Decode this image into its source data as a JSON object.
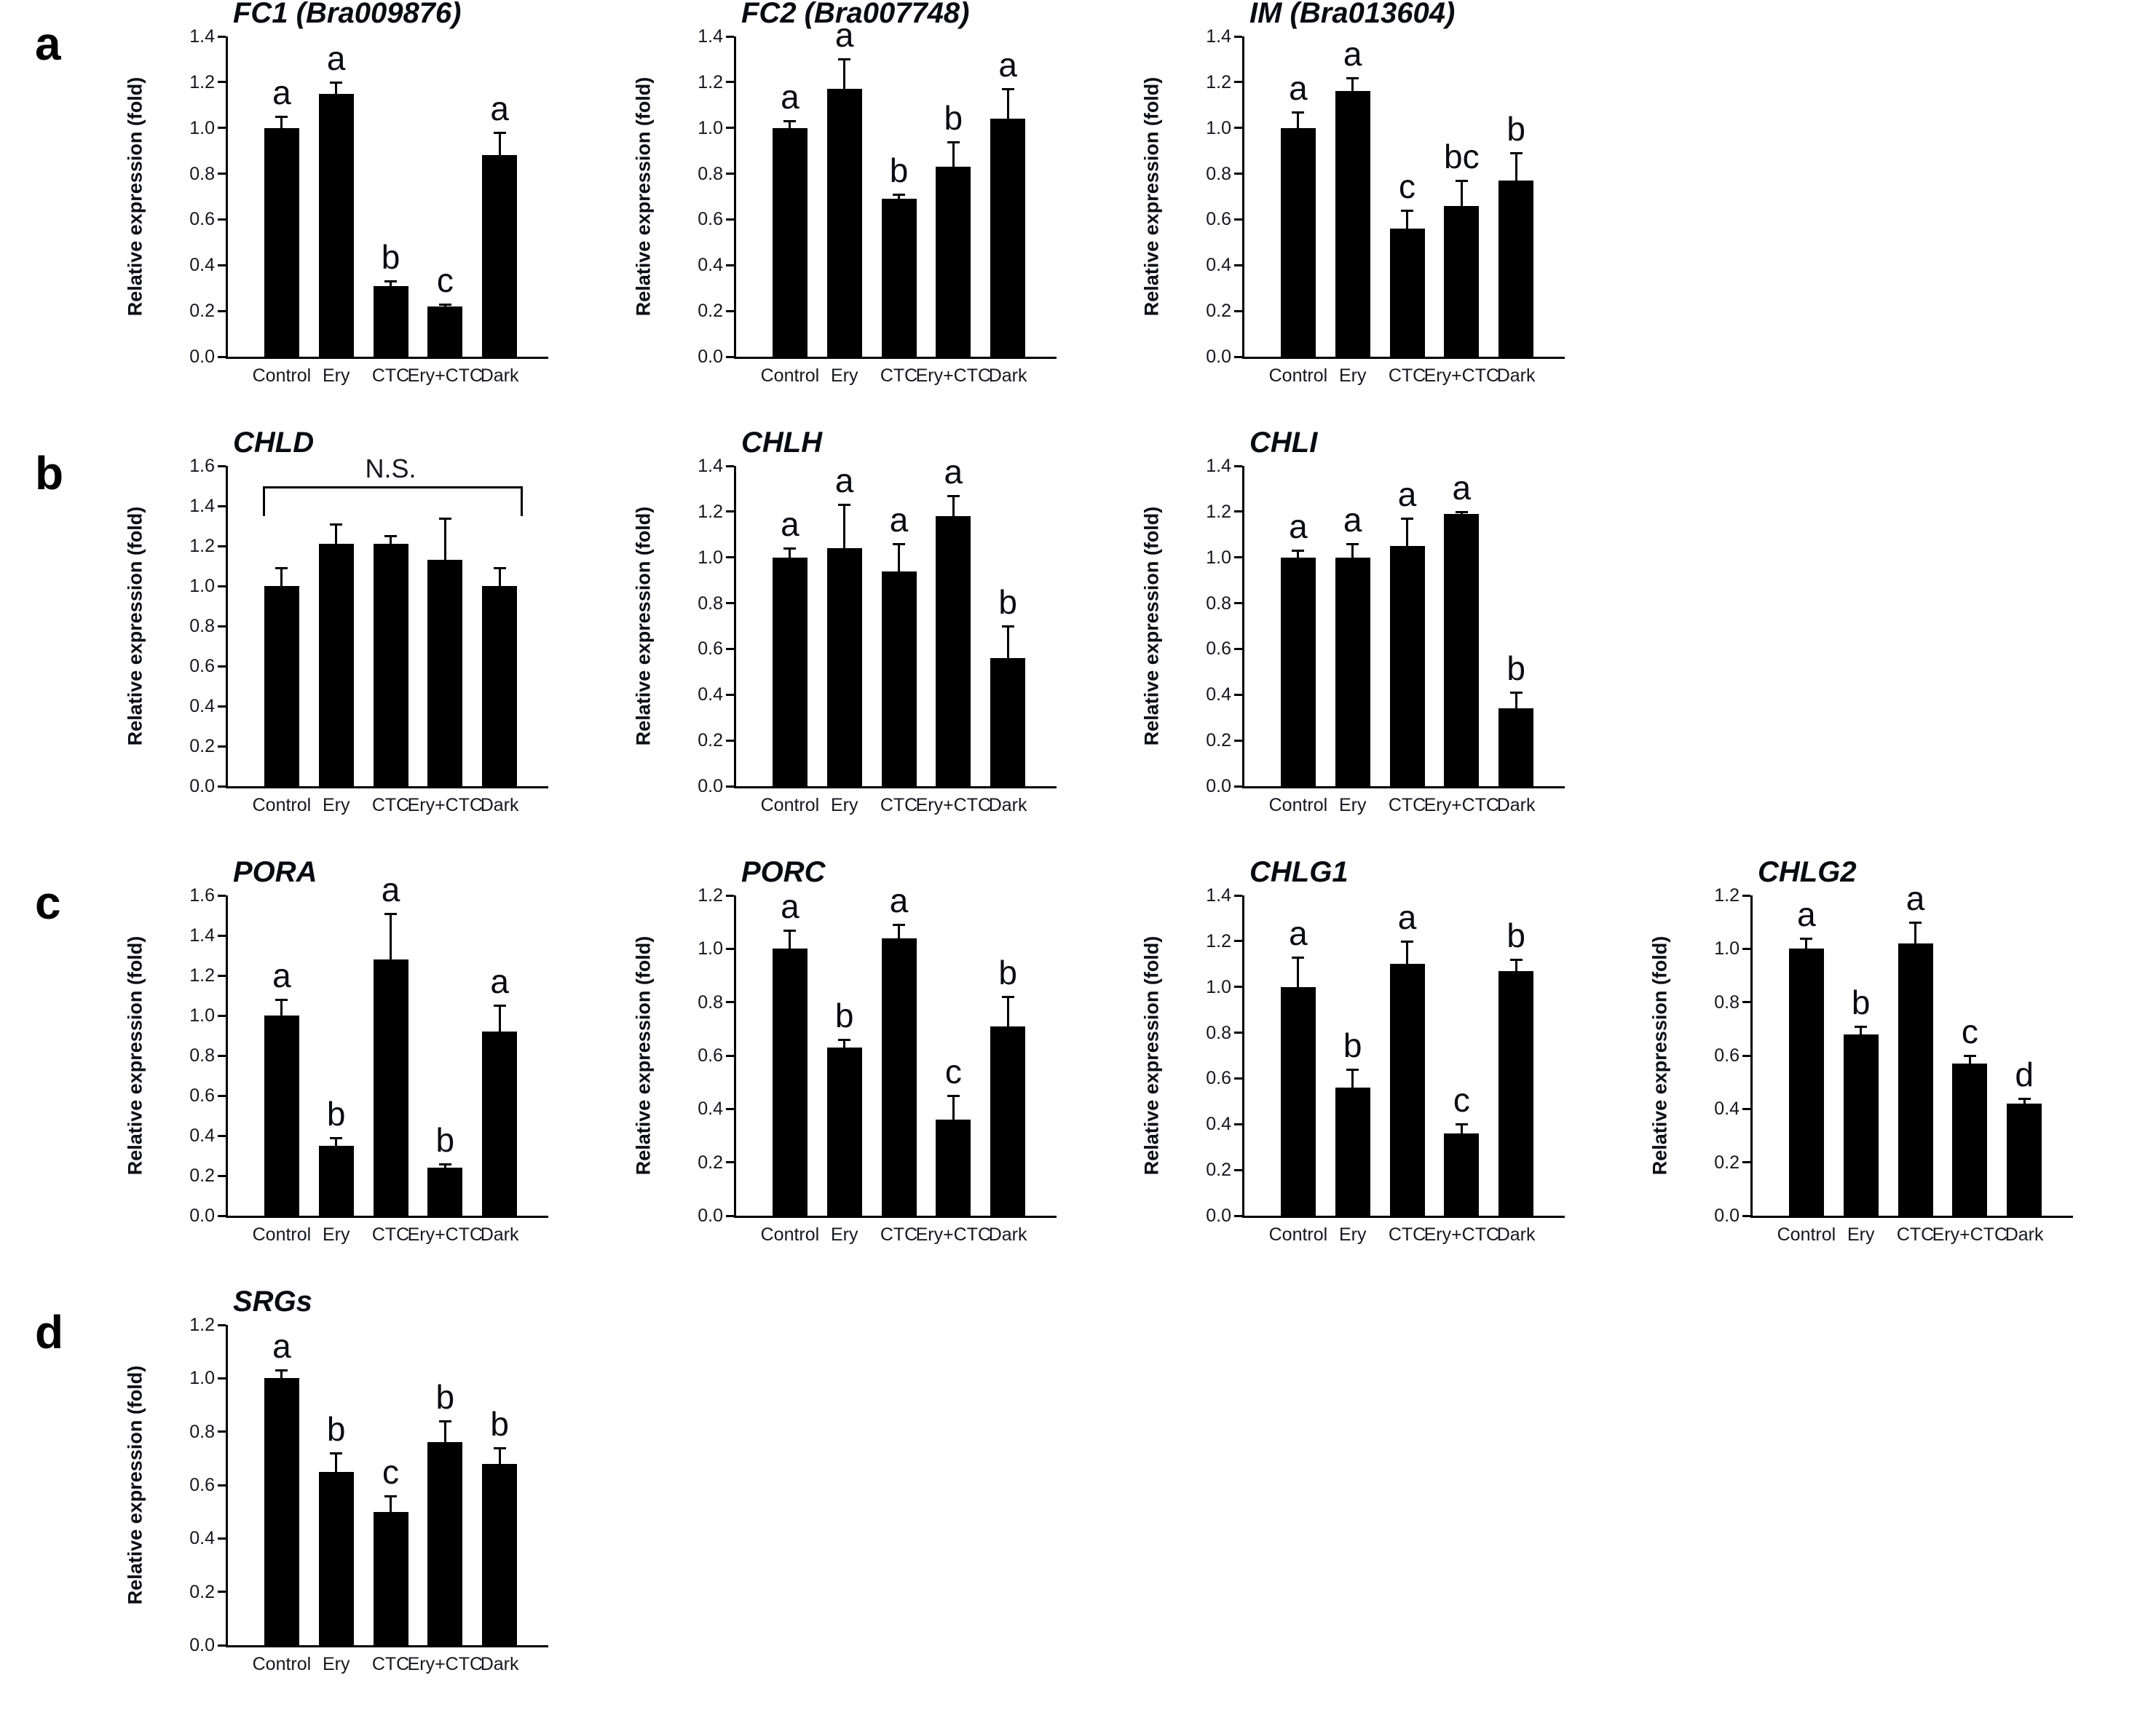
{
  "figure": {
    "background": "#ffffff",
    "bar_color": "#000000",
    "axis_color": "#000000",
    "tick_text_color": "#16161f",
    "title_text_color": "#0a0a12"
  },
  "ylabel": "Relative expression (fold)",
  "panels": [
    {
      "label": "a",
      "charts": [
        "fc1",
        "fc2",
        "im"
      ]
    },
    {
      "label": "b",
      "charts": [
        "chld",
        "chlh",
        "chli"
      ]
    },
    {
      "label": "c",
      "charts": [
        "pora",
        "porc",
        "chlg1",
        "chlg2"
      ]
    },
    {
      "label": "d",
      "charts": [
        "srgs"
      ]
    }
  ],
  "chart_data": [
    {
      "id": "fc1",
      "type": "bar",
      "title": "FC1 (Bra009876)",
      "ylabel": "Relative expression (fold)",
      "ylim": [
        0,
        1.4
      ],
      "ytick_step": 0.2,
      "grid": false,
      "categories": [
        "Control",
        "Ery",
        "CTC",
        "Ery+CTC",
        "Dark"
      ],
      "values": [
        1.0,
        1.15,
        0.31,
        0.22,
        0.88
      ],
      "errors": [
        0.05,
        0.05,
        0.02,
        0.01,
        0.1
      ],
      "letters": [
        "a",
        "a",
        "b",
        "c",
        "a"
      ]
    },
    {
      "id": "fc2",
      "type": "bar",
      "title": "FC2 (Bra007748)",
      "ylabel": "Relative expression (fold)",
      "ylim": [
        0,
        1.4
      ],
      "ytick_step": 0.2,
      "grid": false,
      "categories": [
        "Control",
        "Ery",
        "CTC",
        "Ery+CTC",
        "Dark"
      ],
      "values": [
        1.0,
        1.17,
        0.69,
        0.83,
        1.04
      ],
      "errors": [
        0.03,
        0.13,
        0.02,
        0.11,
        0.13
      ],
      "letters": [
        "a",
        "a",
        "b",
        "b",
        "a"
      ]
    },
    {
      "id": "im",
      "type": "bar",
      "title": "IM (Bra013604)",
      "ylabel": "Relative expression (fold)",
      "ylim": [
        0,
        1.4
      ],
      "ytick_step": 0.2,
      "grid": false,
      "categories": [
        "Control",
        "Ery",
        "CTC",
        "Ery+CTC",
        "Dark"
      ],
      "values": [
        1.0,
        1.16,
        0.56,
        0.66,
        0.77
      ],
      "errors": [
        0.07,
        0.06,
        0.08,
        0.11,
        0.12
      ],
      "letters": [
        "a",
        "a",
        "c",
        "bc",
        "b"
      ]
    },
    {
      "id": "chld",
      "type": "bar",
      "title": "CHLD",
      "ylabel": "Relative expression (fold)",
      "ylim": [
        0,
        1.6
      ],
      "ytick_step": 0.2,
      "grid": false,
      "categories": [
        "Control",
        "Ery",
        "CTC",
        "Ery+CTC",
        "Dark"
      ],
      "values": [
        1.0,
        1.21,
        1.21,
        1.13,
        1.0
      ],
      "errors": [
        0.09,
        0.1,
        0.04,
        0.21,
        0.09
      ],
      "letters": [
        "",
        "",
        "",
        "",
        ""
      ],
      "ns_bracket": {
        "label": "N.S.",
        "y": 1.5,
        "drop": 0.14
      }
    },
    {
      "id": "chlh",
      "type": "bar",
      "title": "CHLH",
      "ylabel": "Relative expression (fold)",
      "ylim": [
        0,
        1.4
      ],
      "ytick_step": 0.2,
      "grid": false,
      "categories": [
        "Control",
        "Ery",
        "CTC",
        "Ery+CTC",
        "Dark"
      ],
      "values": [
        1.0,
        1.04,
        0.94,
        1.18,
        0.56
      ],
      "errors": [
        0.04,
        0.19,
        0.12,
        0.09,
        0.14
      ],
      "letters": [
        "a",
        "a",
        "a",
        "a",
        "b"
      ]
    },
    {
      "id": "chli",
      "type": "bar",
      "title": "CHLI",
      "ylabel": "Relative expression (fold)",
      "ylim": [
        0,
        1.4
      ],
      "ytick_step": 0.2,
      "grid": false,
      "categories": [
        "Control",
        "Ery",
        "CTC",
        "Ery+CTC",
        "Dark"
      ],
      "values": [
        1.0,
        1.0,
        1.05,
        1.19,
        0.34
      ],
      "errors": [
        0.03,
        0.06,
        0.12,
        0.01,
        0.07
      ],
      "letters": [
        "a",
        "a",
        "a",
        "a",
        "b"
      ]
    },
    {
      "id": "pora",
      "type": "bar",
      "title": "PORA",
      "ylabel": "Relative expression (fold)",
      "ylim": [
        0,
        1.6
      ],
      "ytick_step": 0.2,
      "grid": false,
      "categories": [
        "Control",
        "Ery",
        "CTC",
        "Ery+CTC",
        "Dark"
      ],
      "values": [
        1.0,
        0.35,
        1.28,
        0.24,
        0.92
      ],
      "errors": [
        0.08,
        0.04,
        0.23,
        0.02,
        0.13
      ],
      "letters": [
        "a",
        "b",
        "a",
        "b",
        "a"
      ]
    },
    {
      "id": "porc",
      "type": "bar",
      "title": "PORC",
      "ylabel": "Relative expression (fold)",
      "ylim": [
        0,
        1.2
      ],
      "ytick_step": 0.2,
      "grid": false,
      "categories": [
        "Control",
        "Ery",
        "CTC",
        "Ery+CTC",
        "Dark"
      ],
      "values": [
        1.0,
        0.63,
        1.04,
        0.36,
        0.71
      ],
      "errors": [
        0.07,
        0.03,
        0.05,
        0.09,
        0.11
      ],
      "letters": [
        "a",
        "b",
        "a",
        "c",
        "b"
      ]
    },
    {
      "id": "chlg1",
      "type": "bar",
      "title": "CHLG1",
      "ylabel": "Relative expression (fold)",
      "ylim": [
        0,
        1.4
      ],
      "ytick_step": 0.2,
      "grid": false,
      "categories": [
        "Control",
        "Ery",
        "CTC",
        "Ery+CTC",
        "Dark"
      ],
      "values": [
        1.0,
        0.56,
        1.1,
        0.36,
        1.07
      ],
      "errors": [
        0.13,
        0.08,
        0.1,
        0.04,
        0.05
      ],
      "letters": [
        "a",
        "b",
        "a",
        "c",
        "b"
      ]
    },
    {
      "id": "chlg2",
      "type": "bar",
      "title": "CHLG2",
      "ylabel": "Relative expression (fold)",
      "ylim": [
        0,
        1.2
      ],
      "ytick_step": 0.2,
      "grid": false,
      "categories": [
        "Control",
        "Ery",
        "CTC",
        "Ery+CTC",
        "Dark"
      ],
      "values": [
        1.0,
        0.68,
        1.02,
        0.57,
        0.42
      ],
      "errors": [
        0.04,
        0.03,
        0.08,
        0.03,
        0.02
      ],
      "letters": [
        "a",
        "b",
        "a",
        "c",
        "d"
      ]
    },
    {
      "id": "srgs",
      "type": "bar",
      "title": "SRGs",
      "ylabel": "Relative expression (fold)",
      "ylim": [
        0,
        1.2
      ],
      "ytick_step": 0.2,
      "grid": false,
      "categories": [
        "Control",
        "Ery",
        "CTC",
        "Ery+CTC",
        "Dark"
      ],
      "values": [
        1.0,
        0.65,
        0.5,
        0.76,
        0.68
      ],
      "errors": [
        0.03,
        0.07,
        0.06,
        0.08,
        0.06
      ],
      "letters": [
        "a",
        "b",
        "c",
        "b",
        "b"
      ]
    }
  ]
}
